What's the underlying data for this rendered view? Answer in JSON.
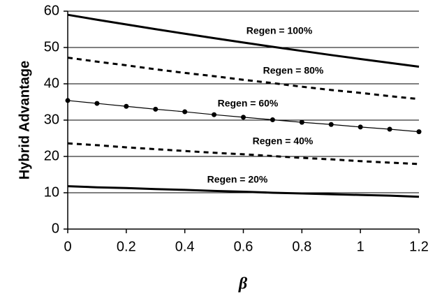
{
  "chart_data": {
    "type": "line",
    "x_label": "β",
    "y_label": "Hybrid Advantage",
    "x": [
      0,
      0.1,
      0.2,
      0.3,
      0.4,
      0.5,
      0.6,
      0.7,
      0.8,
      0.9,
      1,
      1.1,
      1.2
    ],
    "series": [
      {
        "name": "Regen = 100%",
        "color": "#000000",
        "style": "solid",
        "width": 3,
        "marker": "none",
        "values": [
          59,
          57.65,
          56.34,
          55.05,
          53.8,
          52.57,
          51.37,
          50.19,
          49.05,
          47.92,
          46.83,
          45.76,
          44.71
        ]
      },
      {
        "name": "Regen = 80%",
        "color": "#000000",
        "style": "dashed",
        "width": 3,
        "marker": "none",
        "values": [
          47.2,
          46.1,
          45.1,
          44.0,
          43.0,
          42.1,
          41.1,
          40.2,
          39.2,
          38.3,
          37.5,
          36.6,
          35.8
        ]
      },
      {
        "name": "Regen = 60%",
        "color": "#000000",
        "style": "solid",
        "width": 1.2,
        "marker": "circle",
        "values": [
          35.4,
          34.6,
          33.8,
          33.0,
          32.3,
          31.5,
          30.8,
          30.1,
          29.4,
          28.8,
          28.1,
          27.5,
          26.8
        ]
      },
      {
        "name": "Regen = 40%",
        "color": "#000000",
        "style": "dashed",
        "width": 3,
        "marker": "none",
        "values": [
          23.6,
          23.1,
          22.5,
          22.0,
          21.5,
          21.0,
          20.6,
          20.1,
          19.6,
          19.2,
          18.7,
          18.3,
          17.9
        ]
      },
      {
        "name": "Regen = 20%",
        "color": "#000000",
        "style": "solid",
        "width": 3,
        "marker": "none",
        "values": [
          11.8,
          11.5,
          11.3,
          11.0,
          10.8,
          10.5,
          10.3,
          10.0,
          9.8,
          9.6,
          9.4,
          9.2,
          8.9
        ]
      }
    ],
    "xlim": [
      0,
      1.2
    ],
    "xticks": [
      0,
      0.2,
      0.4,
      0.6,
      0.8,
      1,
      1.2
    ],
    "ylim": [
      0,
      60
    ],
    "yticks": [
      0,
      10,
      20,
      30,
      40,
      50,
      60
    ],
    "grid": true
  }
}
